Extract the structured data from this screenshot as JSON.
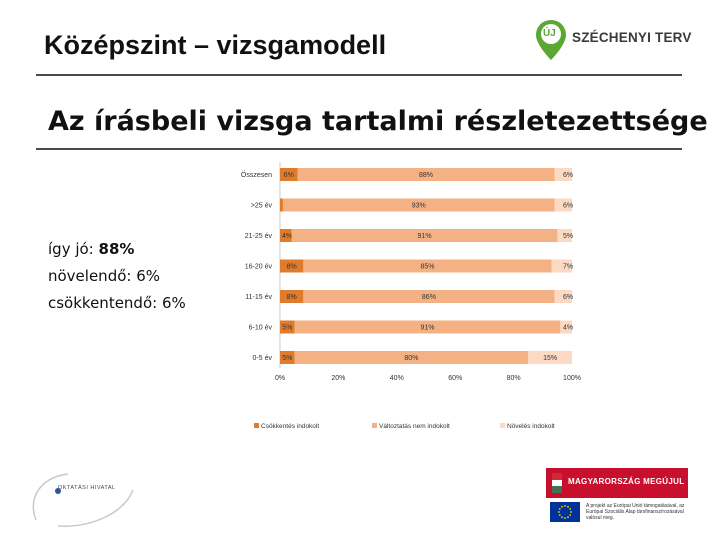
{
  "header": {
    "title": "Középszint – vizsgamodell",
    "subtitle": "Az írásbeli vizsga tartalmi részletezettsége"
  },
  "summary": {
    "good_label": "így jó:",
    "good_value": "88%",
    "increase_text": "növelendő: 6%",
    "decrease_text": "csökkentendő: 6%"
  },
  "logos": {
    "szechenyi_text": "SZÉCHENYI TERV",
    "szechenyi_badge": "ÚJ",
    "szechenyi_color": "#5aa832",
    "oktatasi_text": "OKTATÁSI HIVATAL",
    "banner_text": "MAGYARORSZÁG MEGÚJUL",
    "banner_color": "#c8102e",
    "eu_text": "A projekt az Európai Unió támogatásával, az Európai Szociális Alap társfinanszírozásával valósul meg."
  },
  "chart_data": {
    "type": "bar",
    "orientation": "horizontal",
    "stacked": true,
    "categories": [
      "Összesen",
      ">25 év",
      "21-25 év",
      "16-20 év",
      "11-15 év",
      "6-10 év",
      "0-5 év"
    ],
    "series": [
      {
        "name": "Csökkentés indokolt",
        "color": "#e07b2c",
        "values": [
          6,
          1,
          4,
          8,
          8,
          5,
          5
        ],
        "labels": [
          "6%",
          "1%",
          "4%",
          "8%",
          "8%",
          "5%",
          "5%"
        ]
      },
      {
        "name": "Változtatás nem indokolt",
        "color": "#f4b183",
        "values": [
          88,
          93,
          91,
          85,
          86,
          91,
          80
        ],
        "labels": [
          "88%",
          "93%",
          "91%",
          "85%",
          "86%",
          "91%",
          "80%"
        ]
      },
      {
        "name": "Növelés indokolt",
        "color": "#fbd9c3",
        "values": [
          6,
          6,
          5,
          7,
          6,
          4,
          15
        ],
        "labels": [
          "6%",
          "6%",
          "5%",
          "7%",
          "6%",
          "4%",
          "15%"
        ]
      }
    ],
    "xlim": [
      0,
      100
    ],
    "xticks": [
      "0%",
      "20%",
      "40%",
      "60%",
      "80%",
      "100%"
    ],
    "legend_position": "bottom",
    "grid": false
  }
}
